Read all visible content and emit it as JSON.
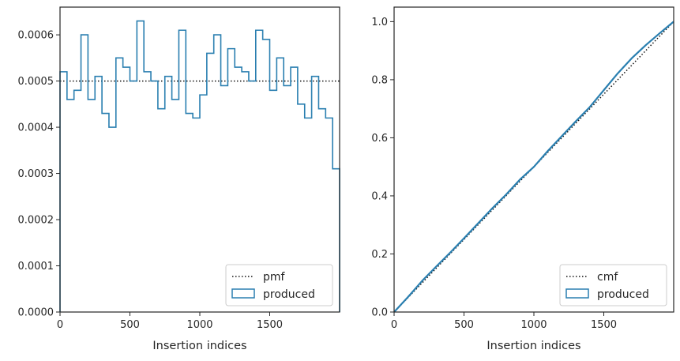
{
  "colors": {
    "step": "#2a7fb0",
    "ref": "#111111",
    "axis": "#262626"
  },
  "chart_data": [
    {
      "type": "line",
      "subtype": "step-histogram",
      "xlabel": "Insertion indices",
      "xlim": [
        0,
        2000
      ],
      "ylim": [
        0,
        0.00066
      ],
      "xticks": [
        0,
        500,
        1000,
        1500
      ],
      "yticks": [
        0,
        0.0001,
        0.0002,
        0.0003,
        0.0004,
        0.0005,
        0.0006
      ],
      "xtick_labels": [
        "0",
        "500",
        "1000",
        "1500"
      ],
      "ytick_labels": [
        "0.0000",
        "0.0001",
        "0.0002",
        "0.0003",
        "0.0004",
        "0.0005",
        "0.0006"
      ],
      "legend": {
        "position": "lower-right",
        "entries": [
          "pmf",
          "produced"
        ]
      },
      "reference_line": {
        "name": "pmf",
        "y": 0.0005,
        "style": "dotted"
      },
      "series": [
        {
          "name": "produced",
          "bin_edges": [
            0,
            50,
            100,
            150,
            200,
            250,
            300,
            350,
            400,
            450,
            500,
            550,
            600,
            650,
            700,
            750,
            800,
            850,
            900,
            950,
            1000,
            1050,
            1100,
            1150,
            1200,
            1250,
            1300,
            1350,
            1400,
            1450,
            1500,
            1550,
            1600,
            1650,
            1700,
            1750,
            1800,
            1850,
            1900,
            1950,
            2000
          ],
          "values": [
            0.00052,
            0.00046,
            0.00048,
            0.0006,
            0.00046,
            0.00051,
            0.00043,
            0.0004,
            0.00055,
            0.00053,
            0.0005,
            0.00063,
            0.00052,
            0.0005,
            0.00044,
            0.00051,
            0.00046,
            0.00061,
            0.00043,
            0.00042,
            0.00047,
            0.00056,
            0.0006,
            0.00049,
            0.00057,
            0.00053,
            0.00052,
            0.0005,
            0.00061,
            0.00059,
            0.00048,
            0.00055,
            0.00049,
            0.00053,
            0.00045,
            0.00042,
            0.00051,
            0.00044,
            0.00042,
            0.00031
          ]
        }
      ]
    },
    {
      "type": "line",
      "subtype": "cumulative-step",
      "xlabel": "Insertion indices",
      "xlim": [
        0,
        2000
      ],
      "ylim": [
        0,
        1.05
      ],
      "xticks": [
        0,
        500,
        1000,
        1500
      ],
      "yticks": [
        0,
        0.2,
        0.4,
        0.6,
        0.8,
        1.0
      ],
      "xtick_labels": [
        "0",
        "500",
        "1000",
        "1500"
      ],
      "ytick_labels": [
        "0.0",
        "0.2",
        "0.4",
        "0.6",
        "0.8",
        "1.0"
      ],
      "legend": {
        "position": "lower-right",
        "entries": [
          "cmf",
          "produced"
        ]
      },
      "reference_line": {
        "name": "cmf",
        "x": [
          0,
          2000
        ],
        "y": [
          0,
          1.0
        ],
        "style": "dotted"
      },
      "series": [
        {
          "name": "produced",
          "x": [
            0,
            100,
            200,
            300,
            400,
            500,
            600,
            700,
            800,
            900,
            1000,
            1100,
            1200,
            1300,
            1400,
            1500,
            1600,
            1700,
            1800,
            1900,
            2000
          ],
          "values": [
            0,
            0.052,
            0.107,
            0.156,
            0.204,
            0.254,
            0.305,
            0.356,
            0.404,
            0.456,
            0.5,
            0.555,
            0.606,
            0.657,
            0.706,
            0.764,
            0.822,
            0.874,
            0.919,
            0.96,
            1.0
          ]
        }
      ]
    }
  ]
}
